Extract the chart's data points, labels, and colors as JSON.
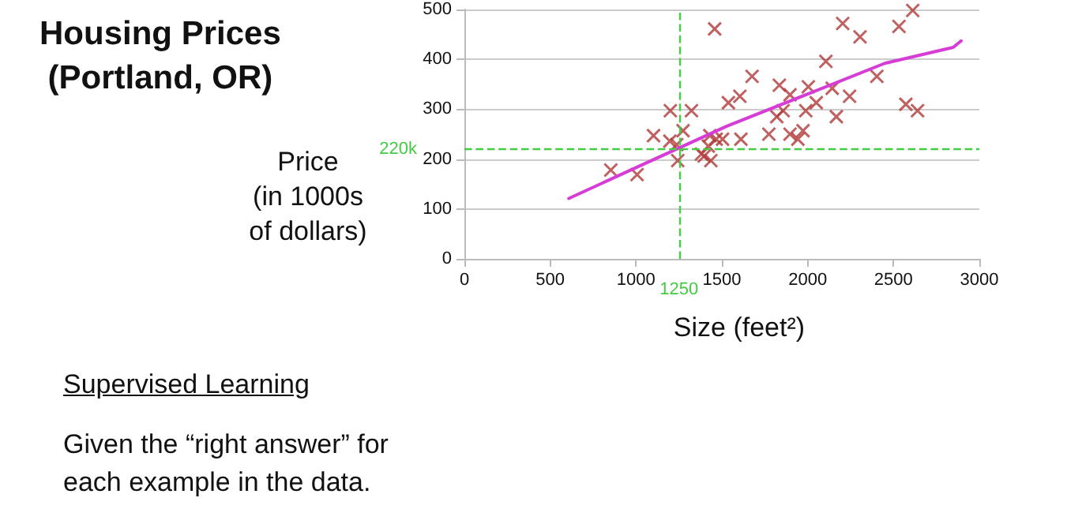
{
  "chart_data": {
    "type": "scatter",
    "title": "Housing Prices\n(Portland, OR)",
    "xlabel": "Size (feet²)",
    "ylabel": "Price\n(in 1000s\nof dollars)",
    "annotations": [
      "Supervised Learning",
      "Given the “right answer” for\neach example in the data."
    ],
    "series": [
      {
        "color": "#b03a3a",
        "marker": "cross",
        "x": [
          1458,
          1676,
          1605,
          1538,
          1200,
          1323,
          1274,
          1102,
          1197,
          1237,
          1430,
          1467,
          1504,
          1611,
          1421,
          1381,
          1397,
          1436,
          1243,
          853,
          1006,
          2204,
          2305,
          2532,
          2612,
          2106,
          2403,
          1835,
          1897,
          2004,
          2143,
          2244,
          2050,
          1857,
          1989,
          1820,
          2167,
          2572,
          2640,
          1774,
          1897,
          1973,
          1943
        ],
        "values": [
          461,
          366,
          326,
          313,
          297,
          297,
          257,
          247,
          236,
          229,
          247,
          240,
          240,
          240,
          226,
          210,
          206,
          197,
          197,
          178,
          169,
          472,
          445,
          466,
          498,
          396,
          366,
          348,
          329,
          345,
          342,
          326,
          313,
          297,
          297,
          285,
          285,
          310,
          297,
          250,
          250,
          257,
          240
        ]
      },
      {
        "type": "line",
        "color": "#d63cd6",
        "marker": "none",
        "x": [
          608,
          1000,
          1529,
          1989,
          2449,
          2848,
          2894
        ],
        "values": [
          121,
          183,
          266,
          329,
          392,
          424,
          437
        ]
      }
    ],
    "xlim": [
      0,
      3000
    ],
    "xticks": [
      0,
      500,
      1000,
      1500,
      2000,
      2500,
      3000
    ],
    "ylim": [
      0,
      500
    ],
    "yticks": [
      0,
      100,
      200,
      300,
      400,
      500
    ],
    "grid": "y",
    "ref_lines": [
      {
        "axis": "y",
        "value": 220,
        "label": "220k",
        "color": "#44cc44",
        "line_style": "dashed"
      },
      {
        "axis": "x",
        "value": 1250,
        "label": "1250",
        "color": "#44cc44",
        "line_style": "dashed"
      }
    ]
  }
}
